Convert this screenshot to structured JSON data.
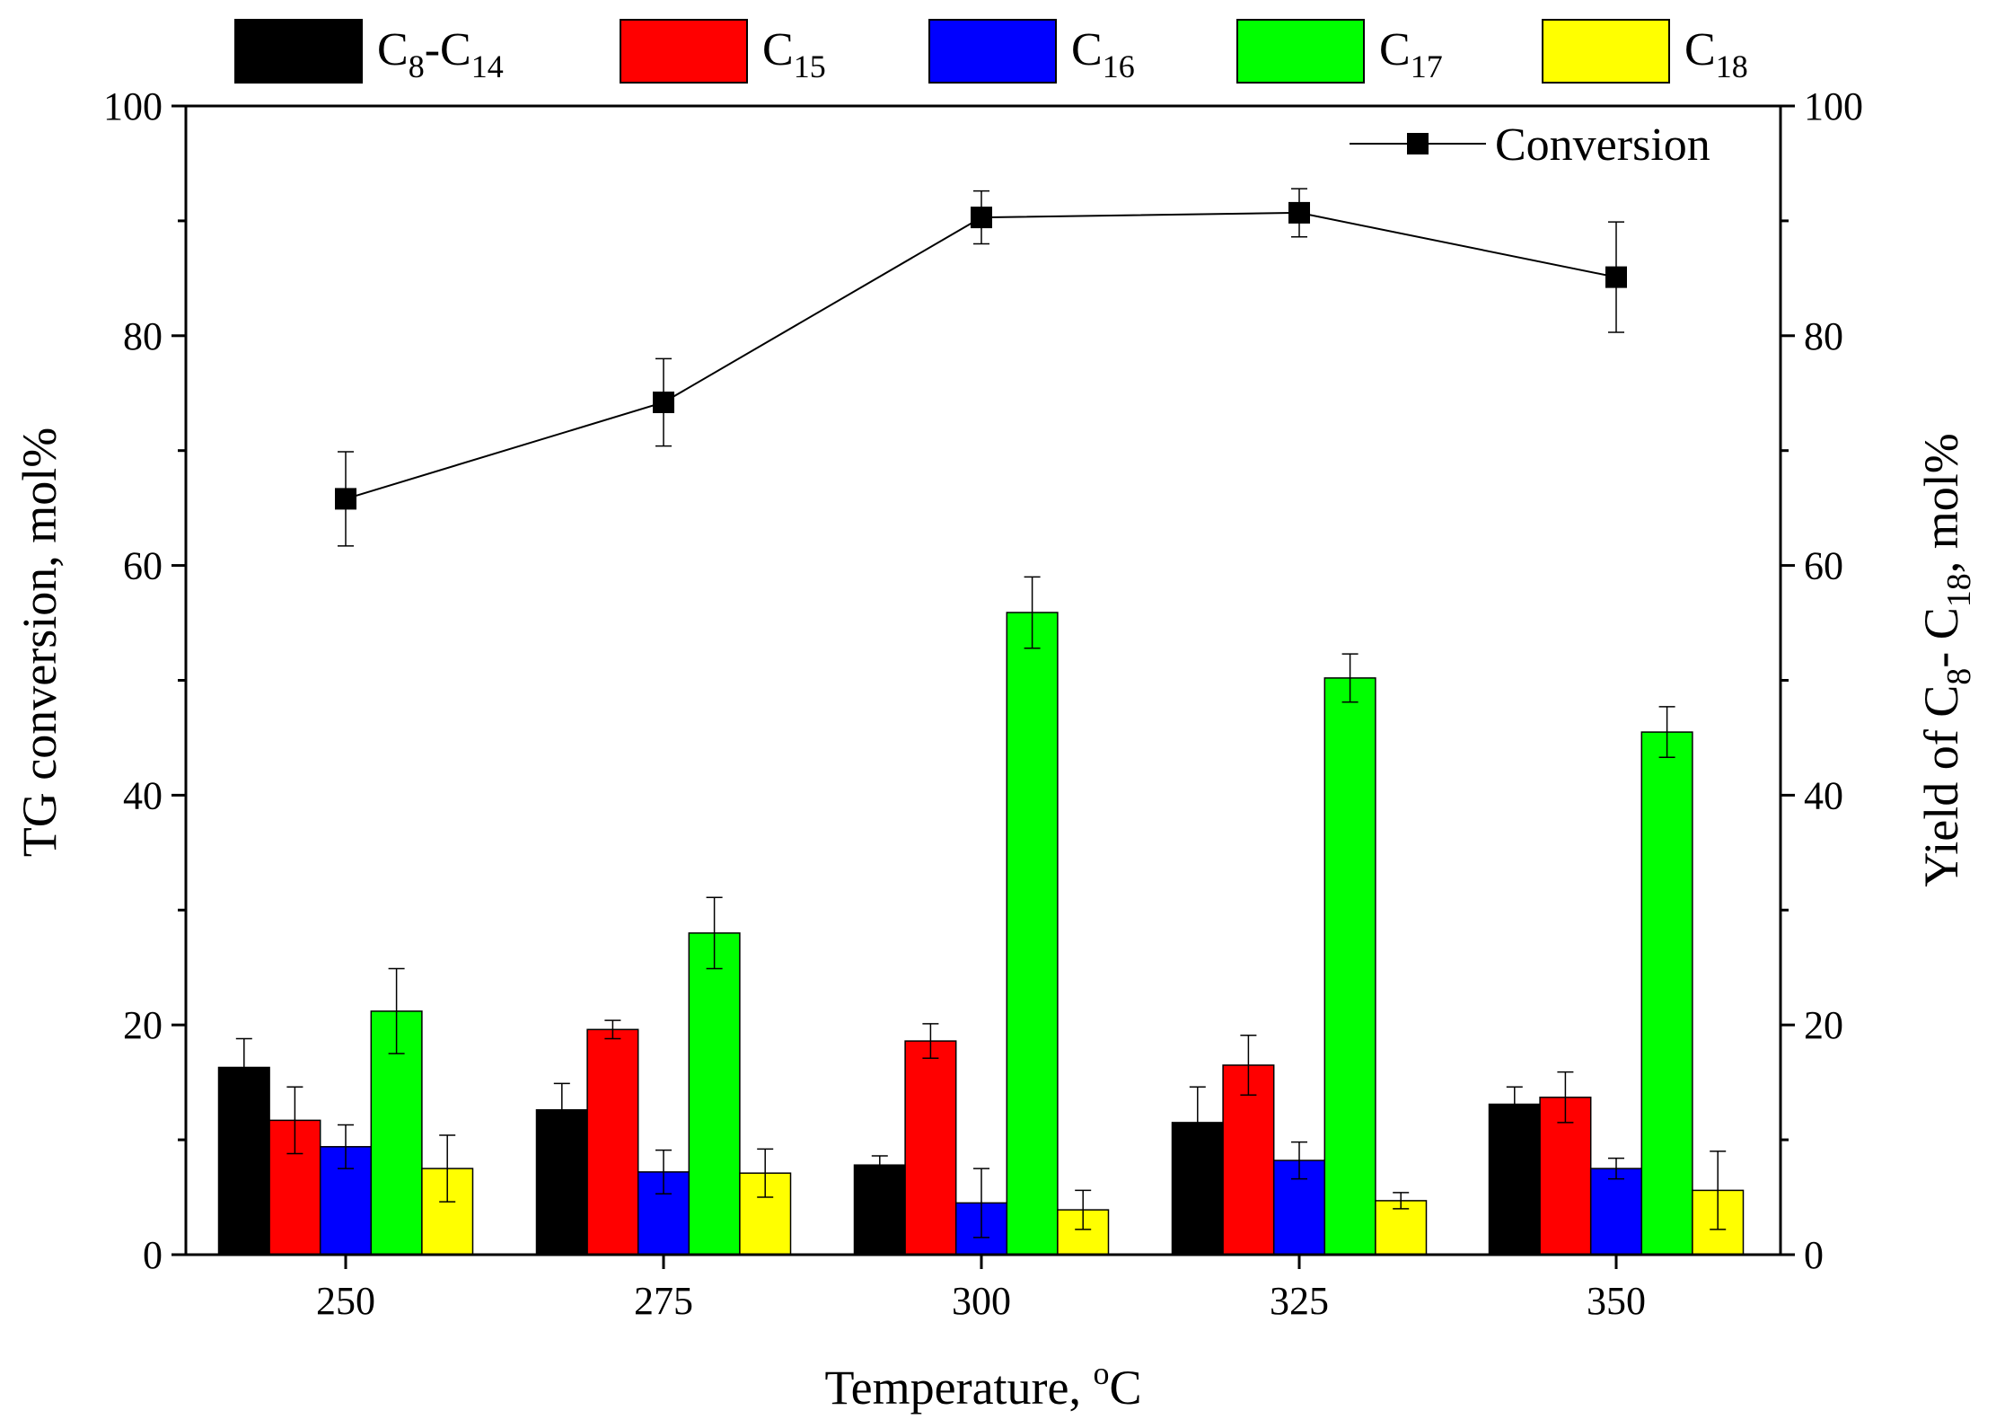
{
  "chart_data": {
    "type": "bar",
    "categories": [
      "250",
      "275",
      "300",
      "325",
      "350"
    ],
    "xlabel": "Temperature, °C",
    "xlabel_main": "Temperature, ",
    "xlabel_sup": "o",
    "xlabel_unit": "C",
    "ylabel_left": "TG conversion, mol%",
    "ylabel_right": "Yield of C8- C18, mol%",
    "ylabel_right_parts": [
      "Yield of C",
      "8",
      "- C",
      "18",
      ", mol%"
    ],
    "ylim_left": [
      0,
      100
    ],
    "ylim_right": [
      0,
      100
    ],
    "yticks": [
      "0",
      "20",
      "40",
      "60",
      "80",
      "100"
    ],
    "legend_position": "top (outside plot)",
    "series": [
      {
        "name": "C8-C14",
        "label_base": "C",
        "label_sub": "8",
        "label_mid": "-C",
        "label_sub2": "14",
        "color": "#000000",
        "values": [
          16.3,
          12.6,
          7.8,
          11.5,
          13.1
        ],
        "errors": [
          2.5,
          2.3,
          0.8,
          3.1,
          1.5
        ]
      },
      {
        "name": "C15",
        "label_base": "C",
        "label_sub": "15",
        "color": "#ff0000",
        "values": [
          11.7,
          19.6,
          18.6,
          16.5,
          13.7
        ],
        "errors": [
          2.9,
          0.8,
          1.5,
          2.6,
          2.2
        ]
      },
      {
        "name": "C16",
        "label_base": "C",
        "label_sub": "16",
        "color": "#0000ff",
        "values": [
          9.4,
          7.2,
          4.5,
          8.2,
          7.5
        ],
        "errors": [
          1.9,
          1.9,
          3.0,
          1.6,
          0.9
        ]
      },
      {
        "name": "C17",
        "label_base": "C",
        "label_sub": "17",
        "color": "#00ff00",
        "values": [
          21.2,
          28.0,
          55.9,
          50.2,
          45.5
        ],
        "errors": [
          3.7,
          3.1,
          3.1,
          2.1,
          2.2
        ]
      },
      {
        "name": "C18",
        "label_base": "C",
        "label_sub": "18",
        "color": "#ffff00",
        "values": [
          7.5,
          7.1,
          3.9,
          4.7,
          5.6
        ],
        "errors": [
          2.9,
          2.1,
          1.7,
          0.7,
          3.4
        ]
      }
    ],
    "line_series": {
      "name": "Conversion",
      "axis": "left",
      "values": [
        65.8,
        74.2,
        90.3,
        90.7,
        85.1
      ],
      "errors": [
        4.1,
        3.8,
        2.3,
        2.1,
        4.8
      ],
      "color": "#000000",
      "marker": "square"
    }
  }
}
